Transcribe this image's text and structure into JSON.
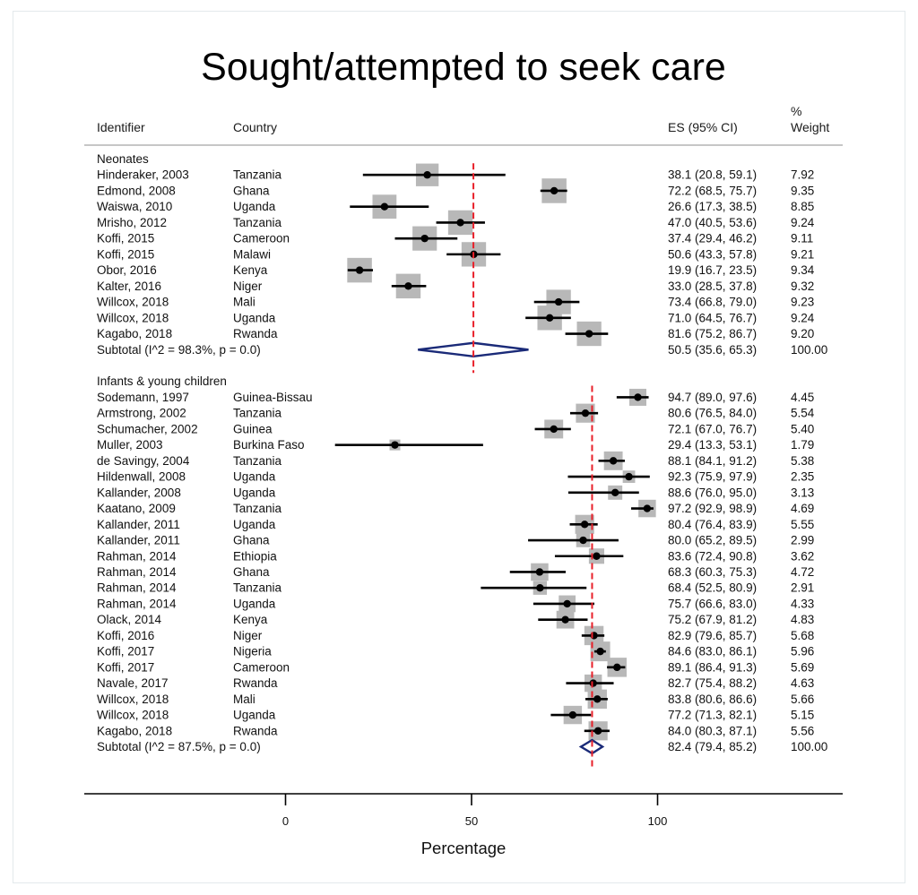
{
  "chart_data": {
    "type": "forest",
    "title": "Sought/attempted to seek care",
    "xlabel": "Percentage",
    "xlim": [
      -54,
      150
    ],
    "xticks": [
      "0",
      "50",
      "100"
    ],
    "headers": {
      "identifier": "Identifier",
      "country": "Country",
      "es": "ES (95% CI)",
      "weight_pct": "%",
      "weight": "Weight"
    },
    "groups": [
      {
        "label": "Neonates",
        "pooled": 50.5,
        "studies": [
          {
            "id": "Hinderaker, 2003",
            "country": "Tanzania",
            "es": 38.1,
            "lo": 20.8,
            "hi": 59.1,
            "es_text": "38.1 (20.8, 59.1)",
            "weight": 7.92,
            "weight_text": "7.92"
          },
          {
            "id": "Edmond, 2008",
            "country": "Ghana",
            "es": 72.2,
            "lo": 68.5,
            "hi": 75.7,
            "es_text": "72.2 (68.5, 75.7)",
            "weight": 9.35,
            "weight_text": "9.35"
          },
          {
            "id": "Waiswa, 2010",
            "country": "Uganda",
            "es": 26.6,
            "lo": 17.3,
            "hi": 38.5,
            "es_text": "26.6 (17.3, 38.5)",
            "weight": 8.85,
            "weight_text": "8.85"
          },
          {
            "id": "Mrisho, 2012",
            "country": "Tanzania",
            "es": 47.0,
            "lo": 40.5,
            "hi": 53.6,
            "es_text": "47.0 (40.5, 53.6)",
            "weight": 9.24,
            "weight_text": "9.24"
          },
          {
            "id": "Koffi, 2015",
            "country": "Cameroon",
            "es": 37.4,
            "lo": 29.4,
            "hi": 46.2,
            "es_text": "37.4 (29.4, 46.2)",
            "weight": 9.11,
            "weight_text": "9.11"
          },
          {
            "id": "Koffi, 2015",
            "country": "Malawi",
            "es": 50.6,
            "lo": 43.3,
            "hi": 57.8,
            "es_text": "50.6 (43.3, 57.8)",
            "weight": 9.21,
            "weight_text": "9.21"
          },
          {
            "id": "Obor, 2016",
            "country": "Kenya",
            "es": 19.9,
            "lo": 16.7,
            "hi": 23.5,
            "es_text": "19.9 (16.7, 23.5)",
            "weight": 9.34,
            "weight_text": "9.34"
          },
          {
            "id": "Kalter, 2016",
            "country": "Niger",
            "es": 33.0,
            "lo": 28.5,
            "hi": 37.8,
            "es_text": "33.0 (28.5, 37.8)",
            "weight": 9.32,
            "weight_text": "9.32"
          },
          {
            "id": "Willcox, 2018",
            "country": "Mali",
            "es": 73.4,
            "lo": 66.8,
            "hi": 79.0,
            "es_text": "73.4 (66.8, 79.0)",
            "weight": 9.23,
            "weight_text": "9.23"
          },
          {
            "id": "Willcox, 2018",
            "country": "Uganda",
            "es": 71.0,
            "lo": 64.5,
            "hi": 76.7,
            "es_text": "71.0 (64.5, 76.7)",
            "weight": 9.24,
            "weight_text": "9.24"
          },
          {
            "id": "Kagabo, 2018",
            "country": "Rwanda",
            "es": 81.6,
            "lo": 75.2,
            "hi": 86.7,
            "es_text": "81.6 (75.2, 86.7)",
            "weight": 9.2,
            "weight_text": "9.20"
          }
        ],
        "subtotal": {
          "label": "Subtotal  (I^2 = 98.3%, p = 0.0)",
          "es": 50.5,
          "lo": 35.6,
          "hi": 65.3,
          "es_text": "50.5 (35.6, 65.3)",
          "weight_text": "100.00"
        }
      },
      {
        "label": "Infants & young children",
        "pooled": 82.4,
        "studies": [
          {
            "id": "Sodemann, 1997",
            "country": "Guinea-Bissau",
            "es": 94.7,
            "lo": 89.0,
            "hi": 97.6,
            "es_text": "94.7 (89.0, 97.6)",
            "weight": 4.45,
            "weight_text": "4.45"
          },
          {
            "id": "Armstrong, 2002",
            "country": "Tanzania",
            "es": 80.6,
            "lo": 76.5,
            "hi": 84.0,
            "es_text": "80.6 (76.5, 84.0)",
            "weight": 5.54,
            "weight_text": "5.54"
          },
          {
            "id": "Schumacher, 2002",
            "country": "Guinea",
            "es": 72.1,
            "lo": 67.0,
            "hi": 76.7,
            "es_text": "72.1 (67.0, 76.7)",
            "weight": 5.4,
            "weight_text": "5.40"
          },
          {
            "id": "Muller, 2003",
            "country": "Burkina Faso",
            "es": 29.4,
            "lo": 13.3,
            "hi": 53.1,
            "es_text": "29.4 (13.3, 53.1)",
            "weight": 1.79,
            "weight_text": "1.79"
          },
          {
            "id": "de Savingy, 2004",
            "country": "Tanzania",
            "es": 88.1,
            "lo": 84.1,
            "hi": 91.2,
            "es_text": "88.1 (84.1, 91.2)",
            "weight": 5.38,
            "weight_text": "5.38"
          },
          {
            "id": "Hildenwall, 2008",
            "country": "Uganda",
            "es": 92.3,
            "lo": 75.9,
            "hi": 97.9,
            "es_text": "92.3 (75.9, 97.9)",
            "weight": 2.35,
            "weight_text": "2.35"
          },
          {
            "id": "Kallander, 2008",
            "country": "Uganda",
            "es": 88.6,
            "lo": 76.0,
            "hi": 95.0,
            "es_text": "88.6 (76.0, 95.0)",
            "weight": 3.13,
            "weight_text": "3.13"
          },
          {
            "id": "Kaatano, 2009",
            "country": "Tanzania",
            "es": 97.2,
            "lo": 92.9,
            "hi": 98.9,
            "es_text": "97.2 (92.9, 98.9)",
            "weight": 4.69,
            "weight_text": "4.69"
          },
          {
            "id": "Kallander, 2011",
            "country": "Uganda",
            "es": 80.4,
            "lo": 76.4,
            "hi": 83.9,
            "es_text": "80.4 (76.4, 83.9)",
            "weight": 5.55,
            "weight_text": "5.55"
          },
          {
            "id": "Kallander, 2011",
            "country": "Ghana",
            "es": 80.0,
            "lo": 65.2,
            "hi": 89.5,
            "es_text": "80.0 (65.2, 89.5)",
            "weight": 2.99,
            "weight_text": "2.99"
          },
          {
            "id": "Rahman, 2014",
            "country": "Ethiopia",
            "es": 83.6,
            "lo": 72.4,
            "hi": 90.8,
            "es_text": "83.6 (72.4, 90.8)",
            "weight": 3.62,
            "weight_text": "3.62"
          },
          {
            "id": "Rahman, 2014",
            "country": "Ghana",
            "es": 68.3,
            "lo": 60.3,
            "hi": 75.3,
            "es_text": "68.3 (60.3, 75.3)",
            "weight": 4.72,
            "weight_text": "4.72"
          },
          {
            "id": "Rahman, 2014",
            "country": "Tanzania",
            "es": 68.4,
            "lo": 52.5,
            "hi": 80.9,
            "es_text": "68.4 (52.5, 80.9)",
            "weight": 2.91,
            "weight_text": "2.91"
          },
          {
            "id": "Rahman, 2014",
            "country": "Uganda",
            "es": 75.7,
            "lo": 66.6,
            "hi": 83.0,
            "es_text": "75.7 (66.6, 83.0)",
            "weight": 4.33,
            "weight_text": "4.33"
          },
          {
            "id": "Olack, 2014",
            "country": "Kenya",
            "es": 75.2,
            "lo": 67.9,
            "hi": 81.2,
            "es_text": "75.2 (67.9, 81.2)",
            "weight": 4.83,
            "weight_text": "4.83"
          },
          {
            "id": "Koffi, 2016",
            "country": "Niger",
            "es": 82.9,
            "lo": 79.6,
            "hi": 85.7,
            "es_text": "82.9 (79.6, 85.7)",
            "weight": 5.68,
            "weight_text": "5.68"
          },
          {
            "id": "Koffi, 2017",
            "country": "Nigeria",
            "es": 84.6,
            "lo": 83.0,
            "hi": 86.1,
            "es_text": "84.6 (83.0, 86.1)",
            "weight": 5.96,
            "weight_text": "5.96"
          },
          {
            "id": "Koffi, 2017",
            "country": "Cameroon",
            "es": 89.1,
            "lo": 86.4,
            "hi": 91.3,
            "es_text": "89.1 (86.4, 91.3)",
            "weight": 5.69,
            "weight_text": "5.69"
          },
          {
            "id": "Navale, 2017",
            "country": "Rwanda",
            "es": 82.7,
            "lo": 75.4,
            "hi": 88.2,
            "es_text": "82.7 (75.4, 88.2)",
            "weight": 4.63,
            "weight_text": "4.63"
          },
          {
            "id": "Willcox, 2018",
            "country": "Mali",
            "es": 83.8,
            "lo": 80.6,
            "hi": 86.6,
            "es_text": "83.8 (80.6, 86.6)",
            "weight": 5.66,
            "weight_text": "5.66"
          },
          {
            "id": "Willcox, 2018",
            "country": "Uganda",
            "es": 77.2,
            "lo": 71.3,
            "hi": 82.1,
            "es_text": "77.2 (71.3, 82.1)",
            "weight": 5.15,
            "weight_text": "5.15"
          },
          {
            "id": "Kagabo, 2018",
            "country": "Rwanda",
            "es": 84.0,
            "lo": 80.3,
            "hi": 87.1,
            "es_text": "84.0 (80.3, 87.1)",
            "weight": 5.56,
            "weight_text": "5.56"
          }
        ],
        "subtotal": {
          "label": "Subtotal  (I^2 = 87.5%, p = 0.0)",
          "es": 82.4,
          "lo": 79.4,
          "hi": 85.2,
          "es_text": "82.4 (79.4, 85.2)",
          "weight_text": "100.00"
        }
      }
    ],
    "colors": {
      "box": "#b8b8b8",
      "point": "#000000",
      "ci_line": "#000000",
      "pooled_line": "#e8202a",
      "diamond": "#1a2a78",
      "rule": "#b4b4b4"
    }
  }
}
